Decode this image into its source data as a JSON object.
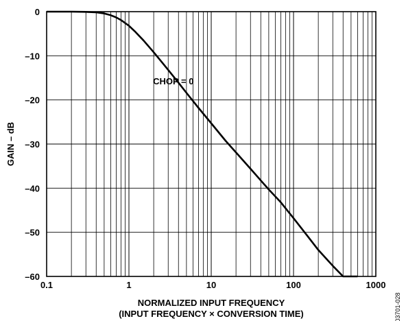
{
  "chart_data": {
    "type": "line",
    "xscale": "log",
    "xlim": [
      0.1,
      1000
    ],
    "ylim": [
      -60,
      0
    ],
    "grid": true,
    "xticks": [
      {
        "value": 0.1,
        "label": "0.1"
      },
      {
        "value": 1,
        "label": "1"
      },
      {
        "value": 10,
        "label": "10"
      },
      {
        "value": 100,
        "label": "100"
      },
      {
        "value": 1000,
        "label": "1000"
      }
    ],
    "yticks": [
      {
        "value": 0,
        "label": "0"
      },
      {
        "value": -10,
        "label": "–10"
      },
      {
        "value": -20,
        "label": "–20"
      },
      {
        "value": -30,
        "label": "–30"
      },
      {
        "value": -40,
        "label": "–40"
      },
      {
        "value": -50,
        "label": "–50"
      },
      {
        "value": -60,
        "label": "–60"
      }
    ],
    "ylabel": "GAIN – dB",
    "xlabel": "NORMALIZED INPUT FREQUENCY",
    "xlabel2": "(INPUT FREQUENCY × CONVERSION TIME)",
    "annotation": {
      "text": "CHOP = 0",
      "x": 3.6,
      "y": -16.5
    },
    "series": [
      {
        "x": [
          0.1,
          0.2,
          0.3,
          0.4,
          0.5,
          0.6,
          0.7,
          0.8,
          1.0,
          1.2,
          1.5,
          2.0,
          2.5,
          3.0,
          4.0,
          5.0,
          7.0,
          10,
          15,
          20,
          30,
          50,
          70,
          100,
          150,
          200,
          300,
          400,
          600
        ],
        "y": [
          0,
          0,
          -0.05,
          -0.15,
          -0.4,
          -0.8,
          -1.3,
          -1.9,
          -3.2,
          -4.6,
          -6.5,
          -9.2,
          -11.4,
          -13.2,
          -16.1,
          -18.4,
          -21.8,
          -25.3,
          -29.3,
          -31.9,
          -35.6,
          -40.3,
          -43.2,
          -46.8,
          -51.0,
          -54.0,
          -57.6,
          -60.2,
          -60.2
        ]
      }
    ]
  },
  "figure_id": "03701-028"
}
